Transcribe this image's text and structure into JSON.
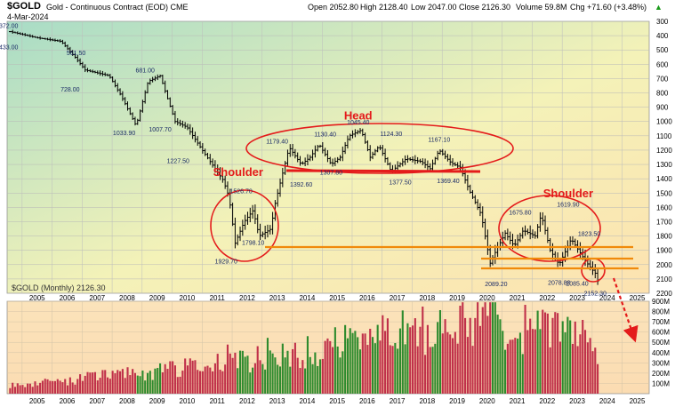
{
  "header": {
    "symbol": "$GOLD",
    "description": "Gold - Continuous Contract (EOD) CME",
    "date": "4-Mar-2024",
    "open": "Open 2052.80",
    "high": "High 2128.40",
    "low": "Low 2047.00",
    "close": "Close 2126.30",
    "volume": "Volume 59.8M",
    "change": "Chg +71.60 (+3.48%)",
    "change_arrow": "▲"
  },
  "legend_label": "$GOLD (Monthly) 2126.30",
  "colors": {
    "ellipse": "#e41b1b",
    "neckline": "#f08a0b",
    "head_line": "#e41b1b",
    "volume_up": "#2e8b2e",
    "volume_down": "#c0304a",
    "price_bars": "#000000"
  },
  "chart_data": [
    {
      "type": "ohlc",
      "title": "$GOLD (Monthly)",
      "y_scale": "inverted",
      "ylim": [
        300,
        2200
      ],
      "y_ticks": [
        "300",
        "400",
        "500",
        "600",
        "700",
        "800",
        "900",
        "1000",
        "1100",
        "1200",
        "1300",
        "1400",
        "1500",
        "1600",
        "1700",
        "1800",
        "1900",
        "2000",
        "2100",
        "2200"
      ],
      "x_ticks": [
        "2005",
        "2006",
        "2007",
        "2008",
        "2009",
        "2010",
        "2011",
        "2012",
        "2013",
        "2014",
        "2015",
        "2016",
        "2017",
        "2018",
        "2019",
        "2020",
        "2021",
        "2022",
        "2023",
        "2024",
        "2025"
      ],
      "x_range": [
        2004.5,
        2025.9
      ],
      "price_path": [
        [
          2004.6,
          372
        ],
        [
          2005.5,
          415
        ],
        [
          2006.3,
          440
        ],
        [
          2006.8,
          560
        ],
        [
          2007.1,
          640
        ],
        [
          2007.9,
          680
        ],
        [
          2008.3,
          820
        ],
        [
          2008.8,
          1030
        ],
        [
          2009.2,
          720
        ],
        [
          2009.6,
          680
        ],
        [
          2010.1,
          1000
        ],
        [
          2010.5,
          1040
        ],
        [
          2011.1,
          1230
        ],
        [
          2011.7,
          1410
        ],
        [
          2011.9,
          1530
        ],
        [
          2012.1,
          1850
        ],
        [
          2012.4,
          1700
        ],
        [
          2012.7,
          1620
        ],
        [
          2012.9,
          1800
        ],
        [
          2013.3,
          1750
        ],
        [
          2013.4,
          1600
        ],
        [
          2013.6,
          1430
        ],
        [
          2013.9,
          1180
        ],
        [
          2014.3,
          1300
        ],
        [
          2014.6,
          1250
        ],
        [
          2014.9,
          1160
        ],
        [
          2015.3,
          1300
        ],
        [
          2015.6,
          1250
        ],
        [
          2015.9,
          1100
        ],
        [
          2016.3,
          1060
        ],
        [
          2016.6,
          1250
        ],
        [
          2016.9,
          1170
        ],
        [
          2017.3,
          1350
        ],
        [
          2017.8,
          1260
        ],
        [
          2018.3,
          1280
        ],
        [
          2018.6,
          1330
        ],
        [
          2018.9,
          1200
        ],
        [
          2019.3,
          1290
        ],
        [
          2019.6,
          1320
        ],
        [
          2019.9,
          1480
        ],
        [
          2020.3,
          1650
        ],
        [
          2020.6,
          1990
        ],
        [
          2020.8,
          1900
        ],
        [
          2021.1,
          1780
        ],
        [
          2021.4,
          1870
        ],
        [
          2021.7,
          1760
        ],
        [
          2022.1,
          1800
        ],
        [
          2022.3,
          1650
        ],
        [
          2022.6,
          1900
        ],
        [
          2022.9,
          2000
        ],
        [
          2023.3,
          1820
        ],
        [
          2023.7,
          1950
        ],
        [
          2023.9,
          2010
        ],
        [
          2024.1,
          2060
        ],
        [
          2024.2,
          2126
        ]
      ],
      "price_labels": [
        {
          "text": "372.00",
          "x": 2004.55,
          "y": 372,
          "pos": "above"
        },
        {
          "text": "433.00",
          "x": 2004.55,
          "y": 433,
          "pos": "below"
        },
        {
          "text": "561.50",
          "x": 2006.8,
          "y": 561.5,
          "pos": "above"
        },
        {
          "text": "728.00",
          "x": 2006.6,
          "y": 728,
          "pos": "below"
        },
        {
          "text": "681.00",
          "x": 2009.1,
          "y": 681,
          "pos": "above"
        },
        {
          "text": "1033.90",
          "x": 2008.4,
          "y": 1033.9,
          "pos": "below"
        },
        {
          "text": "1007.70",
          "x": 2009.6,
          "y": 1007.7,
          "pos": "below"
        },
        {
          "text": "1227.50",
          "x": 2010.2,
          "y": 1227.5,
          "pos": "below"
        },
        {
          "text": "1526.70",
          "x": 2012.3,
          "y": 1526.7,
          "pos": "above"
        },
        {
          "text": "1798.10",
          "x": 2012.7,
          "y": 1798.1,
          "pos": "below"
        },
        {
          "text": "1929.70",
          "x": 2011.8,
          "y": 1929.7,
          "pos": "below"
        },
        {
          "text": "1179.40",
          "x": 2013.5,
          "y": 1179.4,
          "pos": "above"
        },
        {
          "text": "1392.60",
          "x": 2014.3,
          "y": 1392.6,
          "pos": "below"
        },
        {
          "text": "1130.40",
          "x": 2015.1,
          "y": 1130.4,
          "pos": "above"
        },
        {
          "text": "1307.80",
          "x": 2015.3,
          "y": 1307.8,
          "pos": "below"
        },
        {
          "text": "1045.40",
          "x": 2016.2,
          "y": 1045.4,
          "pos": "above"
        },
        {
          "text": "1124.30",
          "x": 2017.3,
          "y": 1124.3,
          "pos": "above"
        },
        {
          "text": "1377.50",
          "x": 2017.6,
          "y": 1377.5,
          "pos": "below"
        },
        {
          "text": "1167.10",
          "x": 2018.9,
          "y": 1167.1,
          "pos": "above"
        },
        {
          "text": "1369.40",
          "x": 2019.2,
          "y": 1369.4,
          "pos": "below"
        },
        {
          "text": "1675.80",
          "x": 2021.6,
          "y": 1675.8,
          "pos": "above"
        },
        {
          "text": "1619.90",
          "x": 2023.2,
          "y": 1619.9,
          "pos": "above"
        },
        {
          "text": "1823.50",
          "x": 2023.9,
          "y": 1823.5,
          "pos": "above"
        },
        {
          "text": "2089.20",
          "x": 2020.8,
          "y": 2089.2,
          "pos": "below"
        },
        {
          "text": "2078.80",
          "x": 2022.9,
          "y": 2078.8,
          "pos": "below"
        },
        {
          "text": "2085.40",
          "x": 2023.5,
          "y": 2085.4,
          "pos": "below"
        },
        {
          "text": "2152.30",
          "x": 2024.1,
          "y": 2152.3,
          "pos": "below"
        }
      ],
      "annotations": [
        {
          "text": "Head",
          "x": 2016.2,
          "y": 985
        },
        {
          "text": "Shoulder",
          "x": 2012.2,
          "y": 1380
        },
        {
          "text": "Shoulder",
          "x": 2023.2,
          "y": 1530
        }
      ]
    },
    {
      "type": "bar",
      "title": "Volume",
      "ylim": [
        0,
        900
      ],
      "y_ticks": [
        "900M",
        "800M",
        "700M",
        "600M",
        "500M",
        "400M",
        "300M",
        "200M",
        "100M"
      ],
      "x_ticks": [
        "2005",
        "2006",
        "2007",
        "2008",
        "2009",
        "2010",
        "2011",
        "2012",
        "2013",
        "2014",
        "2015",
        "2016",
        "2017",
        "2018",
        "2019",
        "2020",
        "2021",
        "2022",
        "2023",
        "2024",
        "2025"
      ],
      "volume_path": [
        [
          2004.6,
          90
        ],
        [
          2006.0,
          110
        ],
        [
          2007.0,
          150
        ],
        [
          2008.0,
          190
        ],
        [
          2009.0,
          200
        ],
        [
          2010.0,
          230
        ],
        [
          2011.0,
          270
        ],
        [
          2011.7,
          350
        ],
        [
          2012.5,
          310
        ],
        [
          2013.4,
          420
        ],
        [
          2014.0,
          360
        ],
        [
          2015.0,
          440
        ],
        [
          2016.0,
          520
        ],
        [
          2017.0,
          560
        ],
        [
          2018.0,
          600
        ],
        [
          2019.0,
          640
        ],
        [
          2019.8,
          760
        ],
        [
          2020.3,
          780
        ],
        [
          2021.0,
          680
        ],
        [
          2022.0,
          600
        ],
        [
          2023.0,
          560
        ],
        [
          2024.0,
          520
        ],
        [
          2024.2,
          300
        ]
      ]
    }
  ]
}
